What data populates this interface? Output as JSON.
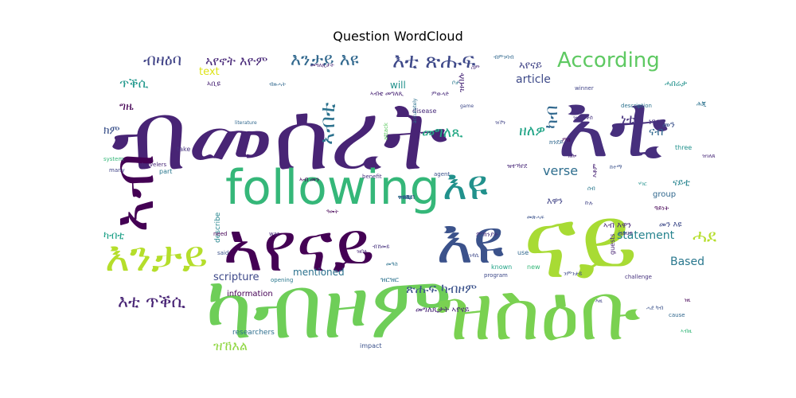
{
  "chart_data": {
    "type": "wordcloud",
    "title": "Question WordCloud",
    "words": [
      {
        "text": "ብመሰረት",
        "weight": 100,
        "color": "#482475"
      },
      {
        "text": "እቲ",
        "weight": 92,
        "color": "#472f7d"
      },
      {
        "text": "ናይ",
        "weight": 90,
        "color": "#a8db34"
      },
      {
        "text": "ካብዞም",
        "weight": 86,
        "color": "#6ece58"
      },
      {
        "text": "ዝስዕቡ",
        "weight": 84,
        "color": "#7ad151"
      },
      {
        "text": "ኣየናይ",
        "weight": 70,
        "color": "#440154"
      },
      {
        "text": "እዩ",
        "weight": 66,
        "color": "#3b528b"
      },
      {
        "text": "following",
        "weight": 50,
        "color": "#35b779"
      },
      {
        "text": "ኣብ",
        "weight": 58,
        "color": "#440154"
      },
      {
        "text": "እንታይ",
        "weight": 40,
        "color": "#b5de2b"
      },
      {
        "text": "እዩ",
        "weight": 36,
        "color": "#21918c"
      },
      {
        "text": "According",
        "weight": 22,
        "color": "#5ec962"
      },
      {
        "text": "ሓደ",
        "weight": 18,
        "color": "#b5de2b"
      },
      {
        "text": "እቲ ጽሑፍ",
        "weight": 17,
        "color": "#3e4989"
      },
      {
        "text": "እንታይ እዩ",
        "weight": 16,
        "color": "#31688e"
      },
      {
        "text": "ኣየኖት እዮም",
        "weight": 14,
        "color": "#482878"
      },
      {
        "text": "ብዛዕባ",
        "weight": 15,
        "color": "#414487"
      },
      {
        "text": "ኣብቲ",
        "weight": 15,
        "color": "#2c728e"
      },
      {
        "text": "እቲ ጥቕሲ",
        "weight": 16,
        "color": "#482475"
      },
      {
        "text": "ዝኸእል",
        "weight": 14,
        "color": "#90d743"
      },
      {
        "text": "ጽሑፍ ካብዞም",
        "weight": 14,
        "color": "#3b528b"
      },
      {
        "text": "መግለጺ",
        "weight": 13,
        "color": "#22a884"
      },
      {
        "text": "ዘለዎ",
        "weight": 14,
        "color": "#20a486"
      },
      {
        "text": "ካብ",
        "weight": 14,
        "color": "#31688e"
      },
      {
        "text": "ነቲ",
        "weight": 13,
        "color": "#46327e"
      },
      {
        "text": "verse",
        "weight": 13,
        "color": "#2e6e8e"
      },
      {
        "text": "statement",
        "weight": 12,
        "color": "#25838e"
      },
      {
        "text": "article",
        "weight": 12,
        "color": "#3e4a89"
      },
      {
        "text": "text",
        "weight": 11,
        "color": "#dde318"
      },
      {
        "text": "ጥቕሲ",
        "weight": 13,
        "color": "#1f978b"
      },
      {
        "text": "ኣየናይ",
        "weight": 12,
        "color": "#414487"
      },
      {
        "text": "ግዜ",
        "weight": 11,
        "color": "#440154"
      },
      {
        "text": "ክም",
        "weight": 11,
        "color": "#3b528b"
      },
      {
        "text": "ካብቲ",
        "weight": 11,
        "color": "#1fa188"
      },
      {
        "text": "Based",
        "weight": 11,
        "color": "#2a788e"
      },
      {
        "text": "scripture",
        "weight": 10,
        "color": "#3e4989"
      },
      {
        "text": "mentioned",
        "weight": 10,
        "color": "#2c728e"
      },
      {
        "text": "ናብ",
        "weight": 10,
        "color": "#31688e"
      },
      {
        "text": "ሓበሬታ",
        "weight": 9,
        "color": "#21918c"
      },
      {
        "text": "ዝብሉ",
        "weight": 9,
        "color": "#482878"
      },
      {
        "text": "ነገር",
        "weight": 9,
        "color": "#46327e"
      },
      {
        "text": "information",
        "weight": 9,
        "color": "#440154"
      },
      {
        "text": "group",
        "weight": 9,
        "color": "#31688e"
      },
      {
        "text": "describe",
        "weight": 9,
        "color": "#25858e"
      },
      {
        "text": "disease",
        "weight": 8,
        "color": "#472a7a"
      },
      {
        "text": "researchers",
        "weight": 8,
        "color": "#2e6f8e"
      },
      {
        "text": "መግለጺታት ኣየናይ",
        "weight": 8,
        "color": "#482475"
      },
      {
        "text": "ኣብ እዋን",
        "weight": 8,
        "color": "#482878"
      },
      {
        "text": "ዓይነት",
        "weight": 8,
        "color": "#440154"
      },
      {
        "text": "impact",
        "weight": 7,
        "color": "#3b528b"
      },
      {
        "text": "known",
        "weight": 7,
        "color": "#20a386"
      },
      {
        "text": "use",
        "weight": 7,
        "color": "#31688e"
      },
      {
        "text": "part",
        "weight": 7,
        "color": "#2a788e"
      },
      {
        "text": "take",
        "weight": 7,
        "color": "#46327e"
      },
      {
        "text": "new",
        "weight": 7,
        "color": "#35b779"
      },
      {
        "text": "guests",
        "weight": 7,
        "color": "#482475"
      },
      {
        "text": "three",
        "weight": 6,
        "color": "#21918c"
      },
      {
        "text": "winner",
        "weight": 6,
        "color": "#414487"
      },
      {
        "text": "description",
        "weight": 6,
        "color": "#2c728e"
      },
      {
        "text": "program",
        "weight": 6,
        "color": "#3e4989"
      },
      {
        "text": "challenge",
        "weight": 6,
        "color": "#46327e"
      },
      {
        "text": "cause",
        "weight": 6,
        "color": "#31688e"
      },
      {
        "text": "issue",
        "weight": 6,
        "color": "#482878"
      },
      {
        "text": "said",
        "weight": 6,
        "color": "#3b528b"
      },
      {
        "text": "opening",
        "weight": 6,
        "color": "#2a788e"
      },
      {
        "text": "war",
        "weight": 6,
        "color": "#472a7a"
      },
      {
        "text": "agent",
        "weight": 6,
        "color": "#3b528b"
      },
      {
        "text": "benefit",
        "weight": 6,
        "color": "#46327e"
      },
      {
        "text": "attack",
        "weight": 6,
        "color": "#5ec962"
      },
      {
        "text": "accurately",
        "weight": 6,
        "color": "#2c728e"
      },
      {
        "text": "literature",
        "weight": 5,
        "color": "#31688e"
      },
      {
        "text": "system",
        "weight": 5,
        "color": "#35b779"
      },
      {
        "text": "travelers",
        "weight": 5,
        "color": "#482878"
      },
      {
        "text": "many",
        "weight": 5,
        "color": "#414487"
      },
      {
        "text": "need",
        "weight": 5,
        "color": "#440154"
      },
      {
        "text": "game",
        "weight": 5,
        "color": "#3e4989"
      },
      {
        "text": "will",
        "weight": 5,
        "color": "#21918c"
      },
      {
        "text": "ኣብቲ መግለጺ",
        "weight": 9,
        "color": "#482475"
      },
      {
        "text": "ምውላድ",
        "weight": 6,
        "color": "#472a7a"
      },
      {
        "text": "መጽሓፍ",
        "weight": 6,
        "color": "#3b528b"
      },
      {
        "text": "ሕጂ",
        "weight": 6,
        "color": "#2c728e"
      },
      {
        "text": "ዝተጠቕሰ",
        "weight": 7,
        "color": "#46327e"
      },
      {
        "text": "ዝተኻየደ",
        "weight": 6,
        "color": "#482878"
      },
      {
        "text": "እዋን",
        "weight": 7,
        "color": "#414487"
      },
      {
        "text": "ኣቢዩ",
        "weight": 8,
        "color": "#482475"
      },
      {
        "text": "መን",
        "weight": 7,
        "color": "#3b528b"
      },
      {
        "text": "መን እዩ",
        "weight": 8,
        "color": "#3e4a89"
      },
      {
        "text": "ኣብ መን",
        "weight": 7,
        "color": "#440154"
      },
      {
        "text": "ክንደይ",
        "weight": 7,
        "color": "#31688e"
      },
      {
        "text": "እቶም",
        "weight": 7,
        "color": "#482475"
      },
      {
        "text": "ናይቲ",
        "weight": 7,
        "color": "#25838e"
      },
      {
        "text": "ምስ",
        "weight": 8,
        "color": "#440154"
      },
      {
        "text": "ዘሎ",
        "weight": 6,
        "color": "#482878"
      },
      {
        "text": "ሰብ",
        "weight": 6,
        "color": "#2a788e"
      },
      {
        "text": "ኩሉ",
        "weight": 6,
        "color": "#414487"
      },
      {
        "text": "ኣገዳሲ",
        "weight": 6,
        "color": "#3e4989"
      },
      {
        "text": "ዝርዝር",
        "weight": 6,
        "color": "#2c728e"
      },
      {
        "text": "ምኽንያት",
        "weight": 6,
        "color": "#46327e"
      },
      {
        "text": "መግለጺታት",
        "weight": 6,
        "color": "#482475"
      },
      {
        "text": "ብምንባብ",
        "weight": 6,
        "color": "#31688e"
      },
      {
        "text": "ሃገር",
        "weight": 6,
        "color": "#21918c"
      },
      {
        "text": "ከተማ",
        "weight": 6,
        "color": "#3b528b"
      },
      {
        "text": "ዓመት",
        "weight": 6,
        "color": "#440154"
      },
      {
        "text": "ቦታ",
        "weight": 6,
        "color": "#2a788e"
      },
      {
        "text": "ስም",
        "weight": 6,
        "color": "#482878"
      },
      {
        "text": "ዝኾነ",
        "weight": 5,
        "color": "#414487"
      },
      {
        "text": "ንምንታይ",
        "weight": 5,
        "color": "#3e4a89"
      },
      {
        "text": "ብኸመይ",
        "weight": 5,
        "color": "#46327e"
      },
      {
        "text": "መዓስ",
        "weight": 5,
        "color": "#2c728e"
      },
      {
        "text": "ዝበለ",
        "weight": 5,
        "color": "#482475"
      },
      {
        "text": "ብዙሓት",
        "weight": 5,
        "color": "#31688e"
      },
      {
        "text": "ሓደ ካብ",
        "weight": 5,
        "color": "#3b528b"
      },
      {
        "text": "ነዚ",
        "weight": 5,
        "color": "#440154"
      },
      {
        "text": "ኣብዚ",
        "weight": 5,
        "color": "#35b779"
      },
      {
        "text": "እዚ",
        "weight": 5,
        "color": "#414487"
      },
      {
        "text": "ዝገለጸ",
        "weight": 5,
        "color": "#482878"
      },
      {
        "text": "ዝሓሸ",
        "weight": 5,
        "color": "#2a788e"
      },
      {
        "text": "ቀንዲ",
        "weight": 5,
        "color": "#46327e"
      },
      {
        "text": "ዝርከብ",
        "weight": 5,
        "color": "#3e4989"
      },
      {
        "text": "ዝነበረ",
        "weight": 5,
        "color": "#25838e"
      }
    ]
  }
}
